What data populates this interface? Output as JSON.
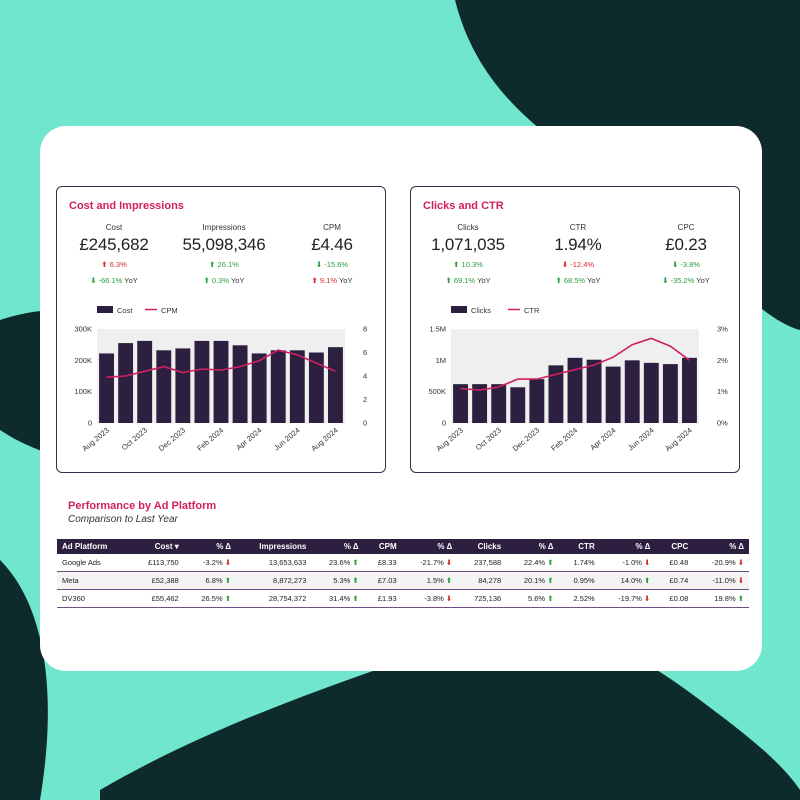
{
  "colors": {
    "background": "#70e6cf",
    "dark_shape": "#0d2b2a",
    "accent": "#d1205f",
    "bar": "#2c1f3f",
    "up": "#2a9c3f",
    "down": "#d42a2a"
  },
  "cost_panel": {
    "title": "Cost and Impressions",
    "kpis": [
      {
        "label": "Cost",
        "value": "£245,682",
        "change": "6.3%",
        "change_dir": "up",
        "change_color": "down",
        "yoy": "-66.1%",
        "yoy_dir": "down",
        "yoy_color": "up",
        "yoy_label": "YoY"
      },
      {
        "label": "Impressions",
        "value": "55,098,346",
        "change": "26.1%",
        "change_dir": "up",
        "change_color": "up",
        "yoy": "0.3%",
        "yoy_dir": "up",
        "yoy_color": "up",
        "yoy_label": "YoY"
      },
      {
        "label": "CPM",
        "value": "£4.46",
        "change": "-15.6%",
        "change_dir": "down",
        "change_color": "up",
        "yoy": "9.1%",
        "yoy_dir": "up",
        "yoy_color": "down",
        "yoy_label": "YoY"
      }
    ]
  },
  "clicks_panel": {
    "title": "Clicks and CTR",
    "kpis": [
      {
        "label": "Clicks",
        "value": "1,071,035",
        "change": "10.3%",
        "change_dir": "up",
        "change_color": "up",
        "yoy": "69.1%",
        "yoy_dir": "up",
        "yoy_color": "up",
        "yoy_label": "YoY"
      },
      {
        "label": "CTR",
        "value": "1.94%",
        "change": "-12.4%",
        "change_dir": "down",
        "change_color": "down",
        "yoy": "68.5%",
        "yoy_dir": "up",
        "yoy_color": "up",
        "yoy_label": "YoY"
      },
      {
        "label": "CPC",
        "value": "£0.23",
        "change": "-3.8%",
        "change_dir": "down",
        "change_color": "up",
        "yoy": "-35.2%",
        "yoy_dir": "down",
        "yoy_color": "up",
        "yoy_label": "YoY"
      }
    ]
  },
  "chart_data": [
    {
      "type": "bar",
      "categories": [
        "Aug 2023",
        "Sep 2023",
        "Oct 2023",
        "Nov 2023",
        "Dec 2023",
        "Jan 2024",
        "Feb 2024",
        "Mar 2024",
        "Apr 2024",
        "May 2024",
        "Jun 2024",
        "Jul 2024",
        "Aug 2024"
      ],
      "x_tick_labels": [
        "Aug 2023",
        "Oct 2023",
        "Dec 2023",
        "Feb 2024",
        "Apr 2024",
        "Jun 2024",
        "Aug 2024"
      ],
      "series": [
        {
          "name": "Cost",
          "kind": "bar",
          "axis": "left",
          "values": [
            222000,
            255000,
            262000,
            232000,
            238000,
            262000,
            262000,
            248000,
            222000,
            232000,
            232000,
            225000,
            242000
          ]
        },
        {
          "name": "CPM",
          "kind": "line",
          "axis": "right",
          "values": [
            3.9,
            4.0,
            4.4,
            4.8,
            4.3,
            4.6,
            4.5,
            4.8,
            5.3,
            6.2,
            5.8,
            5.1,
            4.4
          ]
        }
      ],
      "left_axis": {
        "ticks": [
          0,
          100000,
          200000,
          300000
        ],
        "tick_labels": [
          "0",
          "100K",
          "200K",
          "300K"
        ],
        "range": [
          0,
          300000
        ]
      },
      "right_axis": {
        "ticks": [
          0,
          2,
          4,
          6,
          8
        ],
        "tick_labels": [
          "0",
          "2",
          "4",
          "6",
          "8"
        ],
        "range": [
          0,
          8
        ]
      },
      "legend_position": "top-left"
    },
    {
      "type": "bar",
      "categories": [
        "Aug 2023",
        "Sep 2023",
        "Oct 2023",
        "Nov 2023",
        "Dec 2023",
        "Jan 2024",
        "Feb 2024",
        "Mar 2024",
        "Apr 2024",
        "May 2024",
        "Jun 2024",
        "Jul 2024",
        "Aug 2024"
      ],
      "x_tick_labels": [
        "Aug 2023",
        "Oct 2023",
        "Dec 2023",
        "Feb 2024",
        "Apr 2024",
        "Jun 2024",
        "Aug 2024"
      ],
      "series": [
        {
          "name": "Clicks",
          "kind": "bar",
          "axis": "left",
          "values": [
            620000,
            620000,
            620000,
            570000,
            700000,
            920000,
            1040000,
            1010000,
            900000,
            1000000,
            960000,
            940000,
            1040000
          ]
        },
        {
          "name": "CTR",
          "kind": "line",
          "axis": "right",
          "values": [
            1.1,
            1.05,
            1.15,
            1.4,
            1.4,
            1.55,
            1.7,
            1.85,
            2.1,
            2.5,
            2.7,
            2.45,
            2.0
          ]
        }
      ],
      "left_axis": {
        "ticks": [
          0,
          500000,
          1000000,
          1500000
        ],
        "tick_labels": [
          "0",
          "500K",
          "1M",
          "1.5M"
        ],
        "range": [
          0,
          1500000
        ]
      },
      "right_axis": {
        "ticks": [
          0,
          1,
          2,
          3
        ],
        "tick_labels": [
          "0%",
          "1%",
          "2%",
          "3%"
        ],
        "range": [
          0,
          3
        ]
      },
      "legend_position": "top-left"
    }
  ],
  "performance": {
    "title": "Performance by Ad Platform",
    "subtitle": "Comparison to Last Year",
    "headers": [
      "Ad Platform",
      "Cost ▾",
      "% Δ",
      "Impressions",
      "% Δ",
      "CPM",
      "% Δ",
      "Clicks",
      "% Δ",
      "CTR",
      "% Δ",
      "CPC",
      "% Δ"
    ],
    "rows": [
      {
        "cells": [
          "Google Ads",
          "£113,750",
          "-3.2% ⬇",
          "13,653,633",
          "23.6% ⬆",
          "£8.33",
          "-21.7% ⬇",
          "237,588",
          "22.4% ⬆",
          "1.74%",
          "-1.0% ⬇",
          "£0.48",
          "-20.9% ⬇"
        ],
        "colors": [
          "",
          "",
          "down",
          "",
          "up",
          "",
          "down",
          "",
          "up",
          "",
          "down",
          "",
          "down"
        ]
      },
      {
        "cells": [
          "Meta",
          "£52,388",
          "6.8% ⬆",
          "8,872,273",
          "5.3% ⬆",
          "£7.03",
          "1.5% ⬆",
          "84,278",
          "20.1% ⬆",
          "0.95%",
          "14.0% ⬆",
          "£0.74",
          "-11.0% ⬇"
        ],
        "colors": [
          "",
          "",
          "up",
          "",
          "up",
          "",
          "up",
          "",
          "up",
          "",
          "up",
          "",
          "down"
        ]
      },
      {
        "cells": [
          "DV360",
          "£55,462",
          "26.5% ⬆",
          "28,754,372",
          "31.4% ⬆",
          "£1.93",
          "-3.8% ⬇",
          "725,136",
          "5.6% ⬆",
          "2.52%",
          "-19.7% ⬇",
          "£0.08",
          "19.8% ⬆"
        ],
        "colors": [
          "",
          "",
          "up",
          "",
          "up",
          "",
          "down",
          "",
          "up",
          "",
          "down",
          "",
          "up"
        ]
      }
    ]
  }
}
